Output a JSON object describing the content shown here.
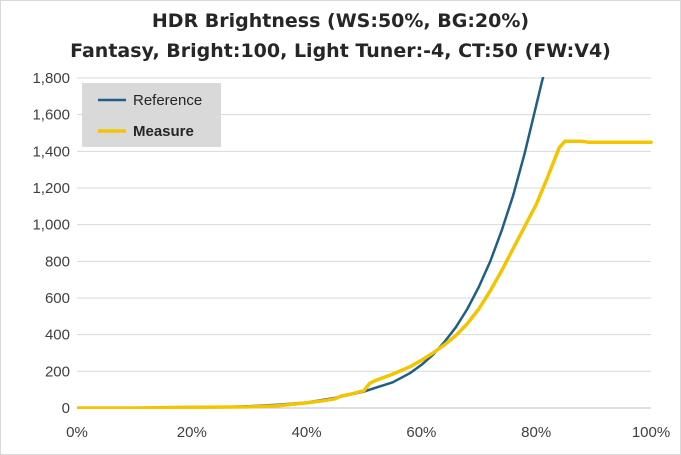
{
  "chart_data": {
    "type": "line",
    "title": "HDR Brightness (WS:50%, BG:20%)",
    "subtitle": "Fantasy, Bright:100, Light Tuner:-4, CT:50 (FW:V4)",
    "xlabel": "",
    "ylabel": "",
    "xlim": [
      0,
      100
    ],
    "ylim": [
      0,
      1800
    ],
    "x_ticks": [
      "0%",
      "20%",
      "40%",
      "60%",
      "80%",
      "100%"
    ],
    "y_ticks": [
      "0",
      "200",
      "400",
      "600",
      "800",
      "1,000",
      "1,200",
      "1,400",
      "1,600",
      "1,800"
    ],
    "grid": "horizontal",
    "legend_position": "top-left",
    "series": [
      {
        "name": "Reference",
        "color": "#1f5f87",
        "x": [
          0,
          10,
          20,
          25,
          30,
          35,
          40,
          45,
          50,
          55,
          58,
          60,
          62,
          64,
          66,
          68,
          70,
          72,
          74,
          76,
          78,
          80,
          81,
          82
        ],
        "y": [
          0,
          0,
          2,
          5,
          10,
          18,
          30,
          55,
          90,
          140,
          190,
          235,
          290,
          360,
          440,
          540,
          660,
          800,
          970,
          1160,
          1390,
          1650,
          1780,
          1900
        ]
      },
      {
        "name": "Measure",
        "color": "#f5c400",
        "x": [
          0,
          10,
          20,
          25,
          30,
          35,
          40,
          43,
          45,
          46,
          48,
          50,
          51,
          52,
          55,
          58,
          60,
          62,
          64,
          66,
          68,
          70,
          72,
          74,
          76,
          78,
          80,
          82,
          84,
          85,
          88,
          89,
          90,
          95,
          100
        ],
        "y": [
          0,
          0,
          4,
          5,
          6,
          12,
          28,
          40,
          50,
          65,
          78,
          95,
          135,
          150,
          185,
          225,
          260,
          300,
          345,
          395,
          460,
          540,
          640,
          750,
          870,
          990,
          1110,
          1260,
          1420,
          1455,
          1455,
          1450,
          1450,
          1450,
          1450
        ]
      }
    ]
  }
}
